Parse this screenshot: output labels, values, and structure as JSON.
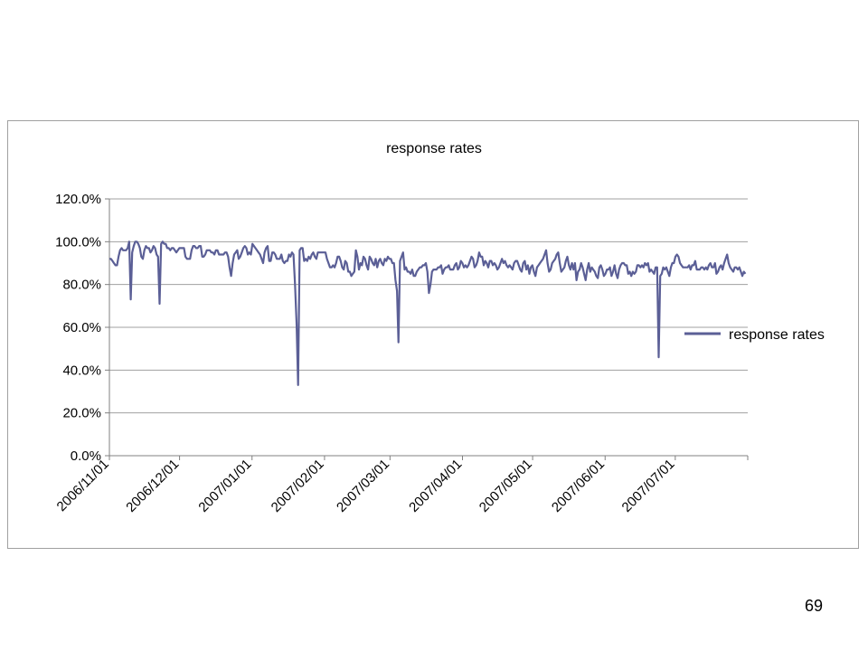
{
  "page": {
    "number": "69"
  },
  "chart_data": {
    "type": "line",
    "title": "response rates",
    "xlabel": "",
    "ylabel": "",
    "x_start": "2006/11/01",
    "x_end": "2007/07/31",
    "xlim": [
      "2006/11/01",
      "2007/08/01"
    ],
    "ylim": [
      0,
      120
    ],
    "y_ticks": [
      "0.0%",
      "20.0%",
      "40.0%",
      "60.0%",
      "80.0%",
      "100.0%",
      "120.0%"
    ],
    "x_ticks": [
      "2006/11/01",
      "2006/12/01",
      "2007/01/01",
      "2007/02/01",
      "2007/03/01",
      "2007/04/01",
      "2007/05/01",
      "2007/06/01",
      "2007/07/01"
    ],
    "grid": true,
    "legend_position": "right",
    "colors": {
      "series": "#5b5f96",
      "grid": "#a0a0a0",
      "frame": "#a0a0a0"
    },
    "series": [
      {
        "name": "response rates",
        "values": [
          92,
          92,
          91,
          90,
          89,
          89,
          93,
          96,
          97,
          96,
          96,
          96,
          97,
          100,
          73,
          95,
          98,
          100,
          100,
          99,
          97,
          93,
          92,
          96,
          98,
          97,
          97,
          95,
          96,
          98,
          97,
          94,
          93,
          71,
          99,
          100,
          99,
          99,
          97,
          97,
          96,
          97,
          97,
          96,
          95,
          96,
          97,
          97,
          97,
          97,
          93,
          92,
          92,
          92,
          96,
          98,
          98,
          97,
          97,
          98,
          98,
          93,
          93,
          94,
          96,
          96,
          96,
          95,
          95,
          94,
          96,
          96,
          94,
          94,
          94,
          94,
          95,
          95,
          93,
          88,
          84,
          90,
          94,
          95,
          96,
          92,
          93,
          95,
          97,
          98,
          97,
          94,
          95,
          94,
          99,
          98,
          97,
          96,
          95,
          94,
          92,
          90,
          95,
          97,
          98,
          91,
          91,
          95,
          95,
          94,
          92,
          92,
          92,
          94,
          91,
          90,
          91,
          91,
          94,
          93,
          95,
          94,
          80,
          62,
          33,
          96,
          97,
          97,
          91,
          92,
          91,
          93,
          92,
          94,
          95,
          93,
          92,
          95,
          95,
          95,
          95,
          95,
          95,
          92,
          90,
          88,
          88,
          89,
          88,
          90,
          93,
          93,
          91,
          88,
          87,
          91,
          90,
          86,
          86,
          84,
          85,
          86,
          96,
          93,
          87,
          90,
          89,
          93,
          92,
          89,
          87,
          93,
          92,
          90,
          89,
          92,
          88,
          91,
          92,
          90,
          89,
          92,
          91,
          93,
          92,
          92,
          90,
          90,
          82,
          77,
          53,
          91,
          93,
          95,
          87,
          88,
          86,
          86,
          85,
          87,
          84,
          84,
          86,
          87,
          88,
          88,
          89,
          89,
          90,
          86,
          76,
          80,
          86,
          87,
          87,
          87,
          88,
          88,
          89,
          85,
          87,
          88,
          88,
          89,
          87,
          87,
          87,
          89,
          90,
          87,
          88,
          91,
          90,
          88,
          89,
          88,
          89,
          91,
          93,
          92,
          88,
          89,
          91,
          95,
          93,
          93,
          89,
          91,
          90,
          88,
          91,
          91,
          89,
          90,
          89,
          87,
          88,
          90,
          92,
          90,
          91,
          89,
          88,
          89,
          88,
          87,
          90,
          91,
          91,
          89,
          87,
          86,
          90,
          91,
          87,
          89,
          85,
          88,
          89,
          86,
          84,
          88,
          89,
          90,
          91,
          92,
          94,
          96,
          90,
          86,
          87,
          90,
          91,
          92,
          94,
          95,
          90,
          86,
          87,
          88,
          91,
          93,
          89,
          87,
          90,
          87,
          90,
          82,
          86,
          87,
          90,
          88,
          85,
          82,
          87,
          90,
          86,
          88,
          87,
          86,
          84,
          83,
          88,
          89,
          87,
          84,
          85,
          87,
          87,
          88,
          84,
          86,
          89,
          85,
          83,
          87,
          89,
          90,
          90,
          89,
          89,
          85,
          86,
          84,
          86,
          85,
          86,
          89,
          89,
          88,
          89,
          88,
          90,
          89,
          90,
          86,
          87,
          86,
          85,
          88,
          88,
          46,
          84,
          85,
          88,
          87,
          88,
          86,
          84,
          88,
          90,
          90,
          93,
          94,
          93,
          90,
          89,
          88,
          88,
          88,
          88,
          89,
          87,
          89,
          89,
          91,
          87,
          87,
          87,
          88,
          88,
          87,
          88,
          87,
          89,
          90,
          88,
          88,
          90,
          85,
          86,
          88,
          89,
          87,
          90,
          92,
          94,
          90,
          88,
          87,
          86,
          88,
          88,
          87,
          88,
          86,
          84,
          86,
          85
        ]
      }
    ]
  }
}
